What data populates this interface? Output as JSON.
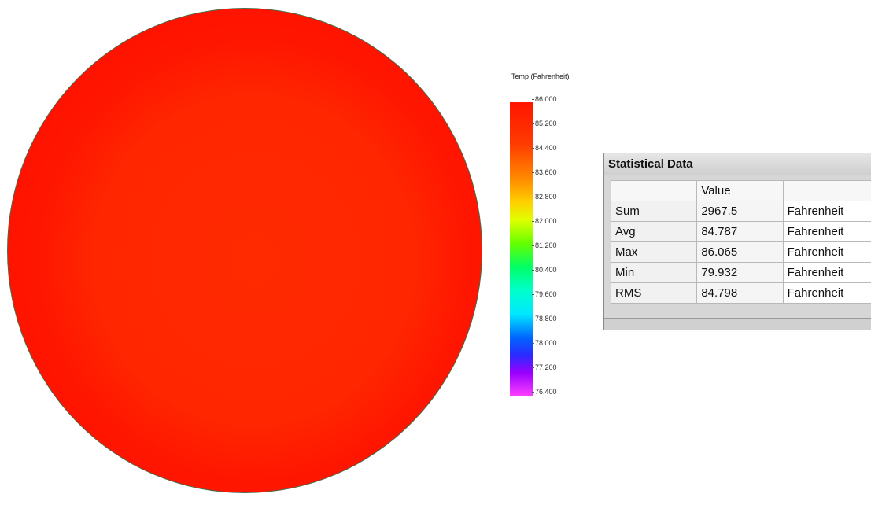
{
  "legend": {
    "title": "Temp (Fahrenheit)",
    "ticks": [
      "86.000",
      "85.200",
      "84.400",
      "83.600",
      "82.800",
      "82.000",
      "81.200",
      "80.400",
      "79.600",
      "78.800",
      "78.000",
      "77.200",
      "76.400"
    ]
  },
  "stats": {
    "title": "Statistical Data",
    "header": [
      "",
      "Value",
      ""
    ],
    "rows": [
      {
        "label": "Sum",
        "value": "2967.5",
        "unit": "Fahrenheit"
      },
      {
        "label": "Avg",
        "value": "84.787",
        "unit": "Fahrenheit"
      },
      {
        "label": "Max",
        "value": "86.065",
        "unit": "Fahrenheit"
      },
      {
        "label": "Min",
        "value": "79.932",
        "unit": "Fahrenheit"
      },
      {
        "label": "RMS",
        "value": "84.798",
        "unit": "Fahrenheit"
      }
    ]
  }
}
